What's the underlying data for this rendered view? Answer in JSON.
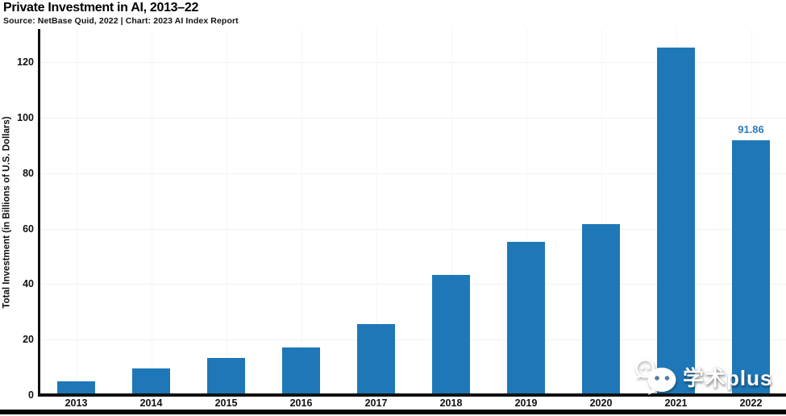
{
  "header": {
    "title": "Private Investment in AI, 2013–22",
    "subtitle": "Source: NetBase Quid, 2022 | Chart: 2023 AI Index Report"
  },
  "chart_data": {
    "type": "bar",
    "title": "Private Investment in AI, 2013–22",
    "categories": [
      "2013",
      "2014",
      "2015",
      "2016",
      "2017",
      "2018",
      "2019",
      "2020",
      "2021",
      "2022"
    ],
    "values": [
      5.0,
      9.5,
      13.5,
      17.1,
      25.6,
      43.2,
      55.3,
      61.6,
      125.4,
      91.86
    ],
    "bar_labels": {
      "2022": "91.86"
    },
    "xlabel": "",
    "ylabel": "Total Investment (in Billions of U.S. Dollars)",
    "yticks": [
      0,
      20,
      40,
      60,
      80,
      100,
      120
    ],
    "ylim": [
      0,
      132
    ],
    "grid": true,
    "legend": "none",
    "bar_color": "#1e78b8",
    "value_label_color": "#2b7bbd",
    "axis_color": "#111111"
  },
  "watermark": {
    "icon": "wechat-icon",
    "text": "学术plus",
    "text_color": "#ffffff",
    "icon_eye_color": "#567d9e"
  }
}
